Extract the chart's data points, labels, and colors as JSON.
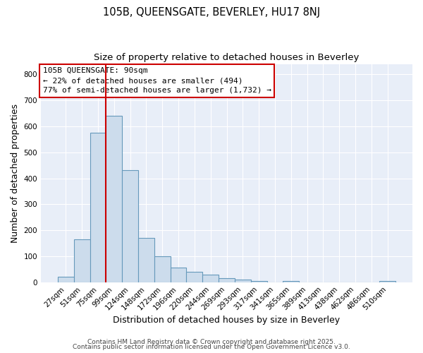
{
  "title": "105B, QUEENSGATE, BEVERLEY, HU17 8NJ",
  "subtitle": "Size of property relative to detached houses in Beverley",
  "xlabel": "Distribution of detached houses by size in Beverley",
  "ylabel": "Number of detached properties",
  "bar_labels": [
    "27sqm",
    "51sqm",
    "75sqm",
    "99sqm",
    "124sqm",
    "148sqm",
    "172sqm",
    "196sqm",
    "220sqm",
    "244sqm",
    "269sqm",
    "293sqm",
    "317sqm",
    "341sqm",
    "365sqm",
    "389sqm",
    "413sqm",
    "438sqm",
    "462sqm",
    "486sqm",
    "510sqm"
  ],
  "bar_values": [
    20,
    165,
    575,
    640,
    430,
    170,
    100,
    55,
    40,
    30,
    15,
    10,
    5,
    0,
    5,
    0,
    0,
    0,
    0,
    0,
    5
  ],
  "bar_color": "#ccdcec",
  "bar_edgecolor": "#6699bb",
  "vline_x": 2.5,
  "vline_color": "#cc0000",
  "annotation_text": "105B QUEENSGATE: 90sqm\n← 22% of detached houses are smaller (494)\n77% of semi-detached houses are larger (1,732) →",
  "annotation_box_color": "#cc0000",
  "ylim": [
    0,
    840
  ],
  "yticks": [
    0,
    100,
    200,
    300,
    400,
    500,
    600,
    700,
    800
  ],
  "background_color": "#ffffff",
  "plot_bg_color": "#e8eef8",
  "grid_color": "#ffffff",
  "footer1": "Contains HM Land Registry data © Crown copyright and database right 2025.",
  "footer2": "Contains public sector information licensed under the Open Government Licence v3.0.",
  "title_fontsize": 10.5,
  "subtitle_fontsize": 9.5,
  "annot_fontsize": 8,
  "tick_fontsize": 7.5,
  "axis_label_fontsize": 9,
  "footer_fontsize": 6.5
}
